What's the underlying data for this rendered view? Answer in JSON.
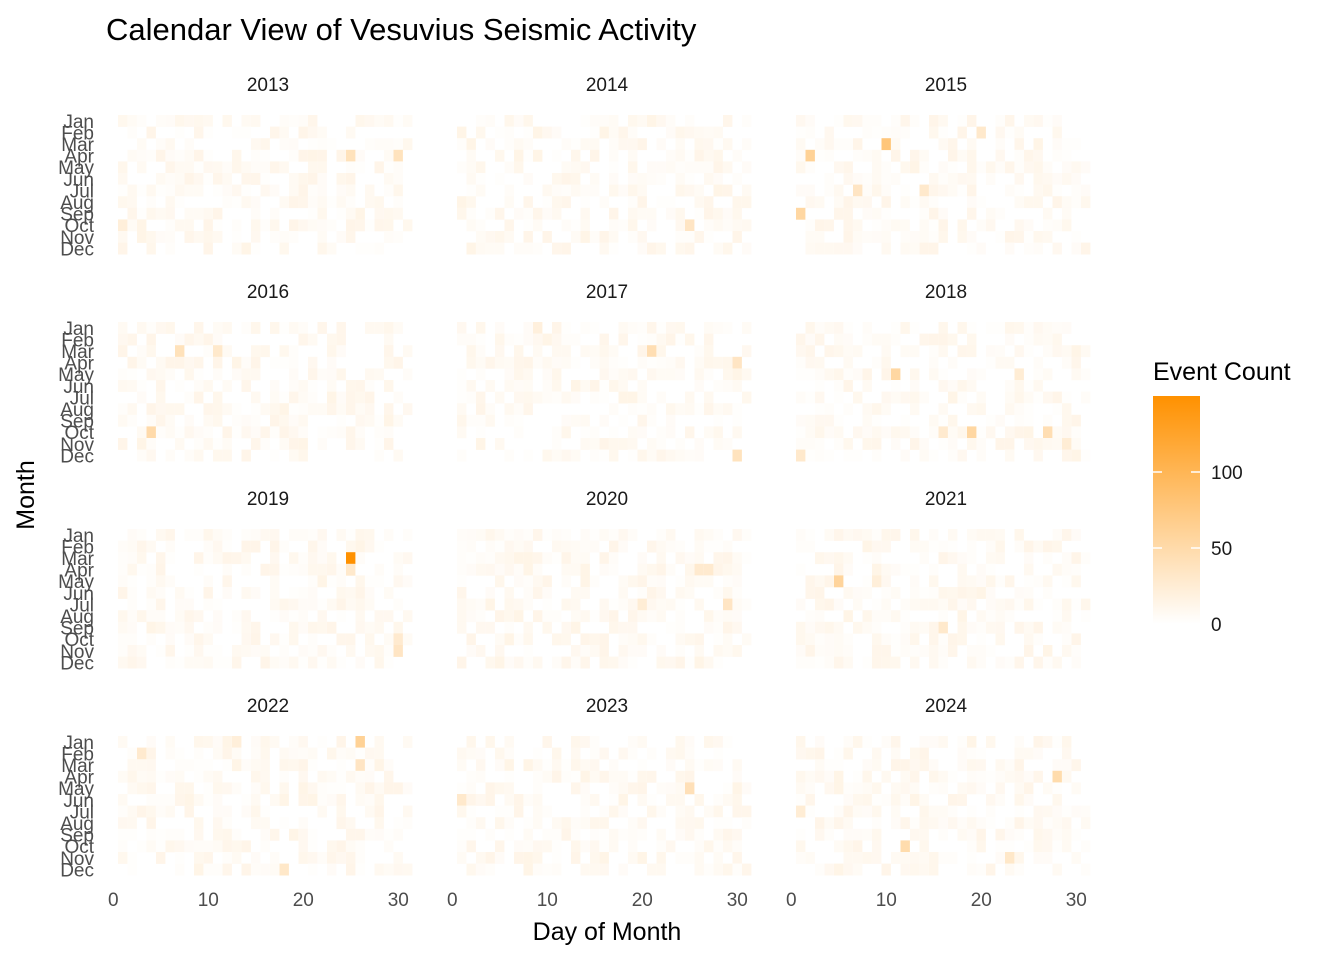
{
  "chart_data": {
    "type": "heatmap",
    "title": "Calendar View of Vesuvius Seismic Activity",
    "xlabel": "Day of Month",
    "ylabel": "Month",
    "x_ticks": [
      0,
      10,
      20,
      30
    ],
    "xlim": [
      0,
      31
    ],
    "months": [
      "Jan",
      "Feb",
      "Mar",
      "Apr",
      "May",
      "Jun",
      "Jul",
      "Aug",
      "Sep",
      "Oct",
      "Nov",
      "Dec"
    ],
    "years": [
      "2013",
      "2014",
      "2015",
      "2016",
      "2017",
      "2018",
      "2019",
      "2020",
      "2021",
      "2022",
      "2023",
      "2024"
    ],
    "grid": false,
    "legend": {
      "title": "Event Count",
      "position": "right",
      "min": 0,
      "max": 150,
      "ticks": [
        0,
        50,
        100
      ],
      "color_low": "#ffffff",
      "color_high": "#ff9100"
    },
    "baseline_description": "Most days have low event counts between 0 and 10",
    "notable_cells": [
      {
        "year": "2013",
        "month": "Apr",
        "day": 25,
        "value": 40
      },
      {
        "year": "2013",
        "month": "Apr",
        "day": 30,
        "value": 38
      },
      {
        "year": "2013",
        "month": "Oct",
        "day": 1,
        "value": 22
      },
      {
        "year": "2014",
        "month": "Oct",
        "day": 25,
        "value": 35
      },
      {
        "year": "2015",
        "month": "Mar",
        "day": 10,
        "value": 78
      },
      {
        "year": "2015",
        "month": "Apr",
        "day": 2,
        "value": 62
      },
      {
        "year": "2015",
        "month": "Feb",
        "day": 20,
        "value": 30
      },
      {
        "year": "2015",
        "month": "Jul",
        "day": 7,
        "value": 35
      },
      {
        "year": "2015",
        "month": "Jul",
        "day": 14,
        "value": 30
      },
      {
        "year": "2015",
        "month": "Sep",
        "day": 1,
        "value": 55
      },
      {
        "year": "2016",
        "month": "Mar",
        "day": 7,
        "value": 40
      },
      {
        "year": "2016",
        "month": "Mar",
        "day": 11,
        "value": 30
      },
      {
        "year": "2016",
        "month": "Oct",
        "day": 4,
        "value": 50
      },
      {
        "year": "2017",
        "month": "Jan",
        "day": 9,
        "value": 20
      },
      {
        "year": "2017",
        "month": "Mar",
        "day": 21,
        "value": 45
      },
      {
        "year": "2017",
        "month": "Apr",
        "day": 30,
        "value": 35
      },
      {
        "year": "2017",
        "month": "Dec",
        "day": 30,
        "value": 38
      },
      {
        "year": "2018",
        "month": "May",
        "day": 11,
        "value": 55
      },
      {
        "year": "2018",
        "month": "May",
        "day": 24,
        "value": 25
      },
      {
        "year": "2018",
        "month": "Oct",
        "day": 19,
        "value": 55
      },
      {
        "year": "2018",
        "month": "Oct",
        "day": 27,
        "value": 45
      },
      {
        "year": "2018",
        "month": "Oct",
        "day": 16,
        "value": 28
      },
      {
        "year": "2018",
        "month": "Dec",
        "day": 1,
        "value": 30
      },
      {
        "year": "2018",
        "month": "Nov",
        "day": 29,
        "value": 25
      },
      {
        "year": "2019",
        "month": "Mar",
        "day": 25,
        "value": 150
      },
      {
        "year": "2019",
        "month": "Apr",
        "day": 25,
        "value": 30
      },
      {
        "year": "2019",
        "month": "Oct",
        "day": 30,
        "value": 28
      },
      {
        "year": "2019",
        "month": "Nov",
        "day": 30,
        "value": 35
      },
      {
        "year": "2020",
        "month": "Apr",
        "day": 26,
        "value": 28
      },
      {
        "year": "2020",
        "month": "Apr",
        "day": 27,
        "value": 28
      },
      {
        "year": "2020",
        "month": "Jul",
        "day": 29,
        "value": 35
      },
      {
        "year": "2020",
        "month": "Jul",
        "day": 20,
        "value": 25
      },
      {
        "year": "2021",
        "month": "May",
        "day": 5,
        "value": 58
      },
      {
        "year": "2021",
        "month": "May",
        "day": 9,
        "value": 22
      },
      {
        "year": "2021",
        "month": "Sep",
        "day": 16,
        "value": 30
      },
      {
        "year": "2022",
        "month": "Jan",
        "day": 26,
        "value": 62
      },
      {
        "year": "2022",
        "month": "Jan",
        "day": 13,
        "value": 22
      },
      {
        "year": "2022",
        "month": "Mar",
        "day": 26,
        "value": 35
      },
      {
        "year": "2022",
        "month": "Feb",
        "day": 3,
        "value": 28
      },
      {
        "year": "2022",
        "month": "Dec",
        "day": 18,
        "value": 32
      },
      {
        "year": "2023",
        "month": "May",
        "day": 25,
        "value": 42
      },
      {
        "year": "2023",
        "month": "Jun",
        "day": 1,
        "value": 30
      },
      {
        "year": "2024",
        "month": "Apr",
        "day": 28,
        "value": 48
      },
      {
        "year": "2024",
        "month": "Oct",
        "day": 12,
        "value": 48
      },
      {
        "year": "2024",
        "month": "Nov",
        "day": 23,
        "value": 32
      },
      {
        "year": "2024",
        "month": "Jul",
        "day": 1,
        "value": 25
      }
    ]
  }
}
